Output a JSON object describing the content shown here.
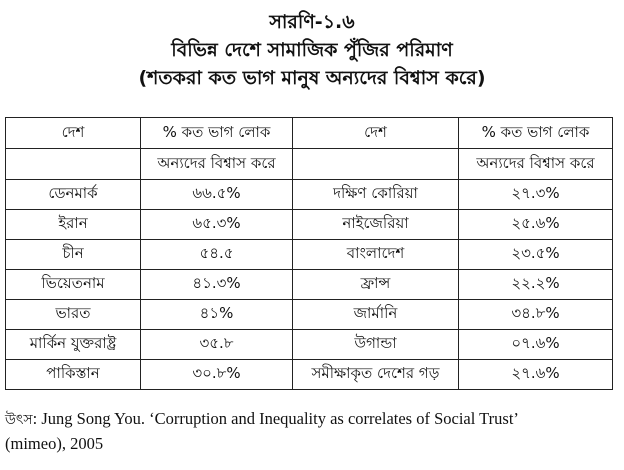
{
  "title": {
    "table_no": "সারণি-১.৬",
    "heading": "বিভিন্ন দেশে সামাজিক পুঁজির পরিমাণ",
    "subheading": "(শতকরা কত ভাগ মানুষ অন্যদের বিশ্বাস করে)"
  },
  "table": {
    "headers": {
      "country": "দেশ",
      "percent_line1": "% কত ভাগ লোক",
      "percent_line2": "অন্যদের বিশ্বাস করে"
    },
    "rows": [
      [
        "ডেনমার্ক",
        "৬৬.৫%",
        "দক্ষিণ কোরিয়া",
        "২৭.৩%"
      ],
      [
        "ইরান",
        "৬৫.৩%",
        "নাইজেরিয়া",
        "২৫.৬%"
      ],
      [
        "চীন",
        "৫৪.৫",
        "বাংলাদেশ",
        "২৩.৫%"
      ],
      [
        "ভিয়েতনাম",
        "৪১.৩%",
        "ফ্রান্স",
        "২২.২%"
      ],
      [
        "ভারত",
        "৪১%",
        "জার্মানি",
        "৩৪.৮%"
      ],
      [
        "মার্কিন যুক্তরাষ্ট্র",
        "৩৫.৮",
        "উগান্ডা",
        "০৭.৬%"
      ],
      [
        "পাকিস্তান",
        "৩০.৮%",
        "সমীক্ষাকৃত দেশের গড়",
        "২৭.৬%"
      ]
    ]
  },
  "source": {
    "label": "উৎস",
    "line1": ": Jung Song You. ‘Corruption and Inequality as correlates of Social Trust’",
    "line2": "(mimeo), 2005"
  }
}
